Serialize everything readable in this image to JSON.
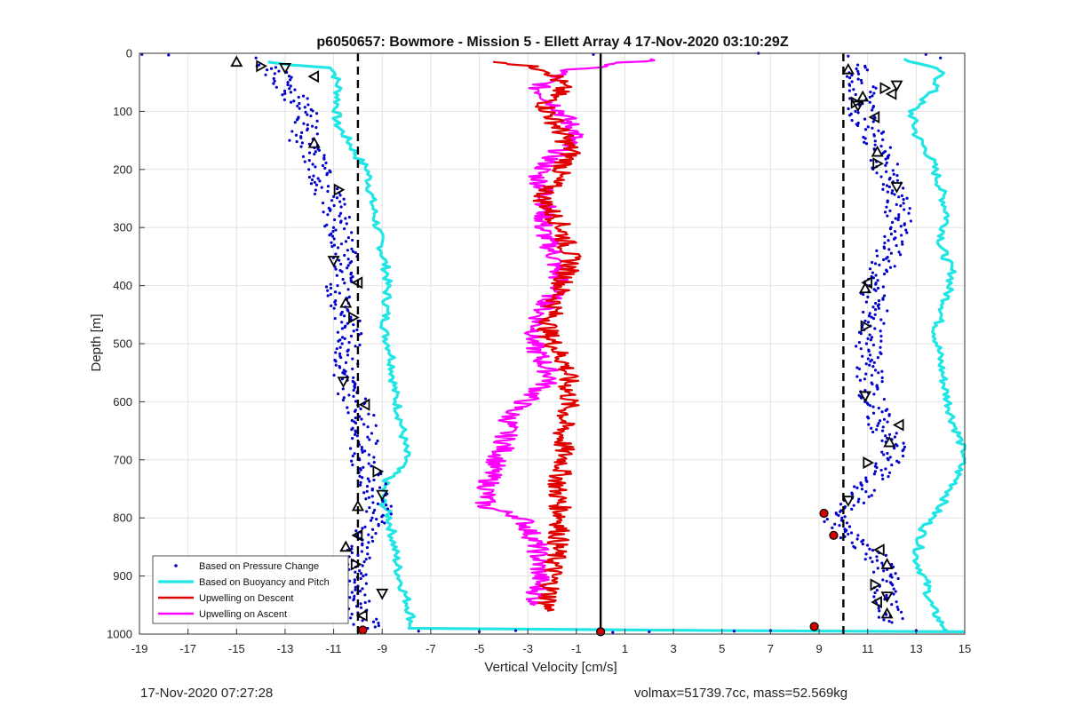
{
  "chart_data": {
    "type": "scatter",
    "title": "p6050657: Bowmore - Mission 5 - Ellett Array 4 17-Nov-2020 03:10:29Z",
    "xlabel": "Vertical Velocity [cm/s]",
    "ylabel": "Depth [m]",
    "xlim": [
      -19,
      15
    ],
    "ylim": [
      0,
      1000
    ],
    "y_reversed": true,
    "grid": true,
    "legend_position": "bottom-left",
    "xticks": [
      "-19",
      "-17",
      "-15",
      "-13",
      "-11",
      "-9",
      "-7",
      "-5",
      "-3",
      "-1",
      "1",
      "3",
      "5",
      "7",
      "9",
      "11",
      "13",
      "15"
    ],
    "yticks": [
      "0",
      "100",
      "200",
      "300",
      "400",
      "500",
      "600",
      "700",
      "800",
      "900",
      "1000"
    ],
    "reference_lines": [
      {
        "x": -10,
        "style": "dashed",
        "color": "#000000"
      },
      {
        "x": 10,
        "style": "dashed",
        "color": "#000000"
      },
      {
        "x": 0,
        "style": "solid",
        "color": "#000000"
      }
    ],
    "series": [
      {
        "name": "Based on Pressure Change",
        "kind": "points",
        "color": "#0000cc",
        "segments": [
          {
            "x": [
              -13.8,
              -13.0,
              -12.5,
              -12.0,
              -12.3,
              -11.8,
              -11.5,
              -11.0,
              -10.8,
              -10.5,
              -10.8,
              -10.5,
              -10.3,
              -10.6,
              -10.4,
              -9.9,
              -9.7,
              -9.8,
              -9.3,
              -9.0,
              -9.5,
              -10.0,
              -10.2,
              -10.0,
              -9.6
            ],
            "y": [
              20,
              50,
              80,
              110,
              150,
              180,
              220,
              260,
              300,
              350,
              400,
              450,
              500,
              550,
              580,
              610,
              650,
              700,
              750,
              780,
              820,
              860,
              900,
              950,
              990
            ]
          },
          {
            "x": [
              10.5,
              10.8,
              10.7,
              11.2,
              11.6,
              12.0,
              12.3,
              12.0,
              11.7,
              11.2,
              11.3,
              11.0,
              11.1,
              11.2,
              11.6,
              12.2,
              11.5,
              10.5,
              9.5,
              10.2,
              11.3,
              11.8,
              11.7,
              12.0
            ],
            "y": [
              20,
              60,
              100,
              140,
              180,
              230,
              280,
              320,
              360,
              400,
              450,
              500,
              550,
              600,
              650,
              680,
              720,
              770,
              800,
              830,
              860,
              900,
              940,
              980
            ]
          }
        ]
      },
      {
        "name": "Based on Buoyancy and Pitch",
        "kind": "line",
        "color": "#22e5e5",
        "segments": [
          {
            "x": [
              -13.7,
              -12.8,
              -11.0,
              -10.8,
              -10.9,
              -10.4,
              -10.0,
              -9.6,
              -9.4,
              -9.2,
              -9.0,
              -8.8,
              -8.8,
              -8.9,
              -8.6,
              -8.5,
              -8.2,
              -8.0,
              -8.9,
              -9.0,
              -8.7,
              -8.5,
              -8.3,
              -8.0,
              -7.8,
              -7.8,
              5.0,
              15.0
            ],
            "y": [
              15,
              20,
              25,
              60,
              120,
              150,
              180,
              200,
              260,
              300,
              340,
              380,
              420,
              480,
              520,
              580,
              640,
              700,
              740,
              770,
              800,
              850,
              900,
              940,
              970,
              990,
              994,
              996
            ]
          },
          {
            "x": [
              12.5,
              14.0,
              13.8,
              12.8,
              13.0,
              13.6,
              14.0,
              14.3,
              14.0,
              14.5,
              14.2,
              13.8,
              14.0,
              14.2,
              14.5,
              15.0,
              14.6,
              14.0,
              13.3,
              13.0,
              13.4,
              13.6,
              14.0,
              14.3
            ],
            "y": [
              10,
              30,
              60,
              100,
              140,
              180,
              230,
              280,
              330,
              380,
              430,
              480,
              530,
              580,
              630,
              690,
              740,
              780,
              820,
              870,
              910,
              950,
              980,
              995
            ]
          }
        ]
      },
      {
        "name": "Upwelling on Descent",
        "kind": "line",
        "color": "#e00000",
        "segments": [
          {
            "x": [
              -4.0,
              -2.0,
              -1.6,
              -2.3,
              -1.7,
              -1.2,
              -1.6,
              -2.4,
              -1.6,
              -1.2,
              -1.8,
              -2.2,
              -1.4,
              -1.3,
              -1.6,
              -1.5,
              -1.8,
              -1.6,
              -1.8,
              -2.0,
              -2.2
            ],
            "y": [
              15,
              30,
              60,
              90,
              130,
              170,
              200,
              250,
              300,
              360,
              420,
              480,
              540,
              600,
              650,
              700,
              750,
              800,
              850,
              900,
              960
            ]
          }
        ]
      },
      {
        "name": "Upwelling on Ascent",
        "kind": "line",
        "color": "#ff00ff",
        "segments": [
          {
            "x": [
              2.2,
              -1.5,
              -2.6,
              -1.6,
              -1.0,
              -2.0,
              -2.6,
              -2.2,
              -2.4,
              -1.9,
              -1.7,
              -2.5,
              -2.8,
              -2.0,
              -3.7,
              -4.0,
              -4.5,
              -4.8,
              -3.2,
              -2.6,
              -2.5,
              -2.7
            ],
            "y": [
              10,
              30,
              60,
              100,
              140,
              180,
              210,
              250,
              300,
              350,
              400,
              450,
              500,
              560,
              620,
              680,
              720,
              780,
              800,
              850,
              900,
              950
            ]
          }
        ]
      }
    ],
    "markers": {
      "open_triangles": [
        [
          -15.0,
          15
        ],
        [
          -14.0,
          22
        ],
        [
          -13.0,
          25
        ],
        [
          -11.8,
          40
        ],
        [
          -11.8,
          155
        ],
        [
          -10.8,
          235
        ],
        [
          -11.0,
          357
        ],
        [
          -10.0,
          395
        ],
        [
          -10.5,
          430
        ],
        [
          -10.2,
          455
        ],
        [
          -10.6,
          565
        ],
        [
          -9.7,
          605
        ],
        [
          -10.0,
          780
        ],
        [
          -9.2,
          720
        ],
        [
          -9.0,
          760
        ],
        [
          -10.0,
          830
        ],
        [
          -10.5,
          850
        ],
        [
          -10.1,
          880
        ],
        [
          -9.0,
          930
        ],
        [
          -9.8,
          968
        ],
        [
          10.2,
          28
        ],
        [
          11.7,
          60
        ],
        [
          12.2,
          55
        ],
        [
          12.0,
          70
        ],
        [
          10.8,
          75
        ],
        [
          10.5,
          85
        ],
        [
          10.6,
          90
        ],
        [
          11.3,
          110
        ],
        [
          11.4,
          170
        ],
        [
          11.4,
          190
        ],
        [
          12.2,
          230
        ],
        [
          11.0,
          395
        ],
        [
          10.9,
          405
        ],
        [
          10.9,
          470
        ],
        [
          10.9,
          590
        ],
        [
          12.3,
          640
        ],
        [
          11.9,
          670
        ],
        [
          11.0,
          705
        ],
        [
          10.2,
          770
        ],
        [
          11.5,
          855
        ],
        [
          11.8,
          880
        ],
        [
          11.3,
          915
        ],
        [
          11.8,
          935
        ],
        [
          11.4,
          945
        ],
        [
          11.8,
          965
        ]
      ],
      "red_points": [
        [
          -9.8,
          993
        ],
        [
          0.0,
          996
        ],
        [
          8.8,
          987
        ],
        [
          9.2,
          792
        ],
        [
          9.6,
          830
        ]
      ]
    }
  },
  "footer": {
    "timestamp": "17-Nov-2020 07:27:28",
    "summary": "volmax=51739.7cc, mass=52.569kg"
  }
}
